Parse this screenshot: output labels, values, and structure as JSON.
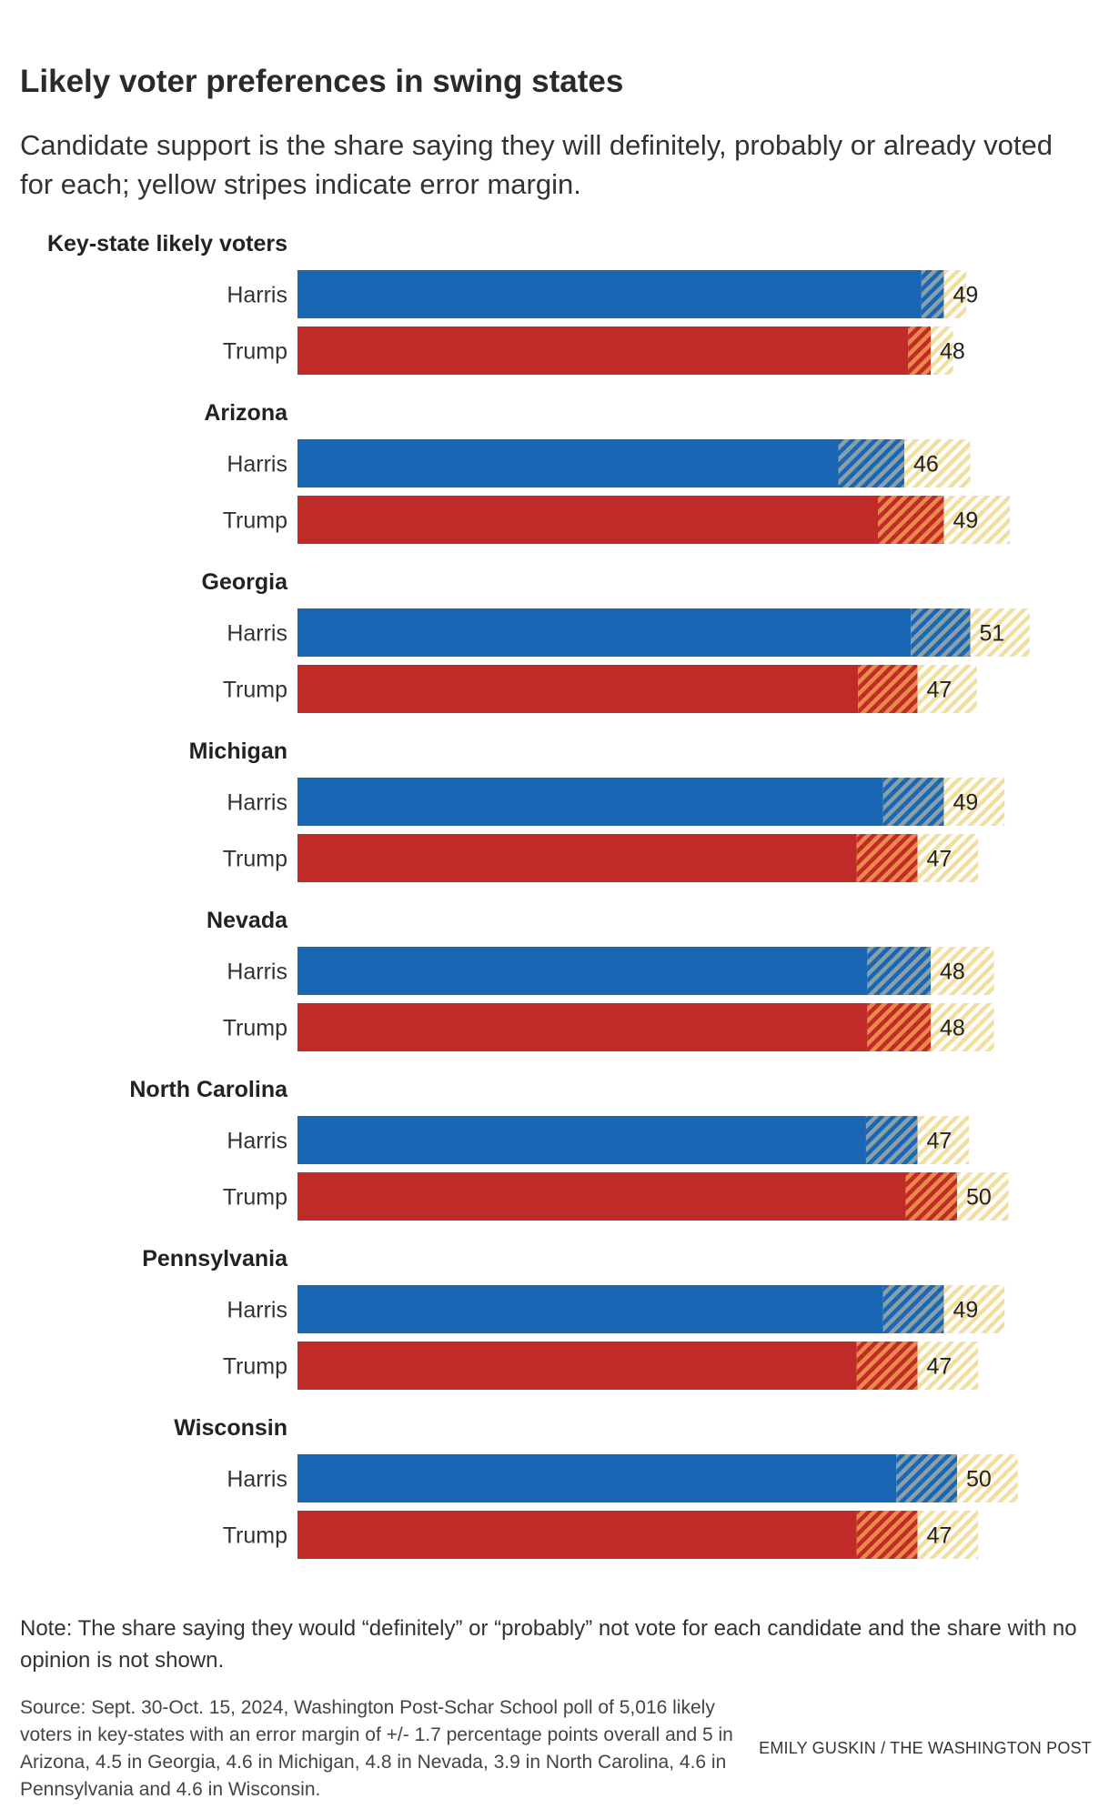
{
  "title": "Likely voter preferences in swing states",
  "subtitle": "Candidate support is the share saying they will definitely, probably or already voted for each; yellow stripes indicate error margin.",
  "chart_data": {
    "type": "bar",
    "orientation": "horizontal",
    "title": "Likely voter preferences in swing states",
    "series_names": [
      "Harris",
      "Trump"
    ],
    "colors": {
      "Harris": "#1866b4",
      "Trump": "#c12b27",
      "margin_stripe": "#f2dfa0",
      "text": "#222222"
    },
    "xlim": [
      0,
      60
    ],
    "groups": [
      {
        "name": "Key-state likely voters",
        "margin": 1.7,
        "values": {
          "Harris": 49,
          "Trump": 48
        }
      },
      {
        "name": "Arizona",
        "margin": 5,
        "values": {
          "Harris": 46,
          "Trump": 49
        }
      },
      {
        "name": "Georgia",
        "margin": 4.5,
        "values": {
          "Harris": 51,
          "Trump": 47
        }
      },
      {
        "name": "Michigan",
        "margin": 4.6,
        "values": {
          "Harris": 49,
          "Trump": 47
        }
      },
      {
        "name": "Nevada",
        "margin": 4.8,
        "values": {
          "Harris": 48,
          "Trump": 48
        }
      },
      {
        "name": "North Carolina",
        "margin": 3.9,
        "values": {
          "Harris": 47,
          "Trump": 50
        }
      },
      {
        "name": "Pennsylvania",
        "margin": 4.6,
        "values": {
          "Harris": 49,
          "Trump": 47
        }
      },
      {
        "name": "Wisconsin",
        "margin": 4.6,
        "values": {
          "Harris": 50,
          "Trump": 47
        }
      }
    ]
  },
  "note": "Note: The share saying they would “definitely” or “probably” not vote for each candidate and the share with no opinion is not shown.",
  "source": "Source: Sept. 30-Oct. 15, 2024, Washington Post-Schar School poll of 5,016 likely voters in key-states with an error margin of +/- 1.7 percentage points overall and 5 in Arizona, 4.5 in Georgia, 4.6 in Michigan, 4.8 in Nevada, 3.9 in North Carolina, 4.6 in Pennsylvania and 4.6 in Wisconsin.",
  "credit": "EMILY GUSKIN / THE WASHINGTON POST"
}
